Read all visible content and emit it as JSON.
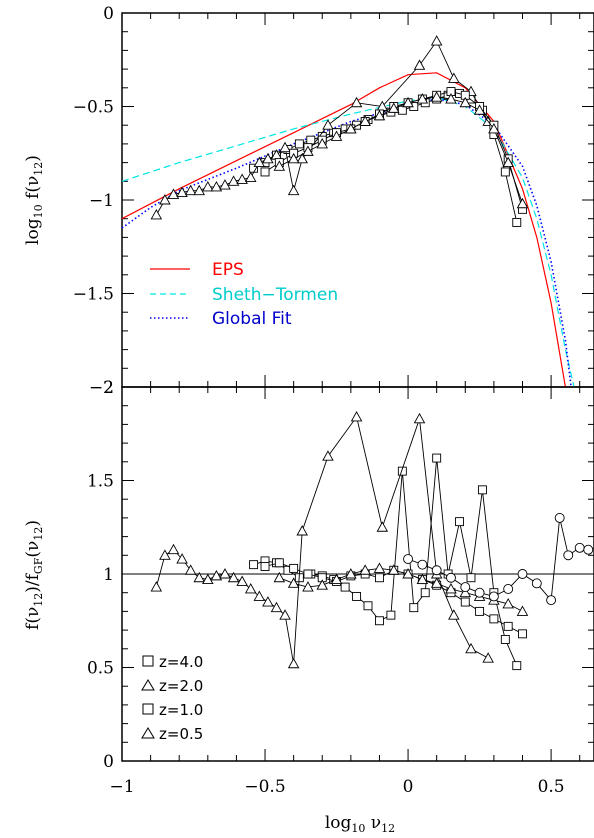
{
  "figure": {
    "top_panel": {
      "ylabel": "log10 f(ν12)",
      "ylim": [
        -2,
        0
      ],
      "yticks": [
        0,
        -0.5,
        -1,
        -1.5,
        -2
      ],
      "ytick_labels": [
        "0",
        "−0.5",
        "−1",
        "−1.5",
        "−2"
      ]
    },
    "bottom_panel": {
      "ylabel": "f(ν12)/fGF(ν12)",
      "ylim": [
        0,
        2
      ],
      "yticks": [
        0,
        0.5,
        1,
        1.5,
        2
      ],
      "ytick_labels": [
        "0",
        "0.5",
        "1",
        "1.5",
        "2"
      ]
    },
    "xlabel": "log10 ν12",
    "xlim": [
      -1,
      0.65
    ],
    "xticks": [
      -1,
      -0.5,
      0,
      0.5
    ],
    "xtick_labels": [
      "−1",
      "−0.5",
      "0",
      "0.5"
    ],
    "legend_curves": [
      {
        "label": "EPS",
        "color": "#ff0000",
        "style": "solid"
      },
      {
        "label": "Sheth−Tormen",
        "color": "#00e5e5",
        "style": "dashed"
      },
      {
        "label": "Global Fit",
        "color": "#0000ff",
        "style": "dotted"
      }
    ],
    "legend_symbols": [
      {
        "label": "z=4.0",
        "symbol": "square"
      },
      {
        "label": "z=2.0",
        "symbol": "triangle"
      },
      {
        "label": "z=1.0",
        "symbol": "square"
      },
      {
        "label": "z=0.5",
        "symbol": "triangle"
      }
    ]
  },
  "chart_data": [
    {
      "type": "line",
      "panel": "top",
      "xlabel": "log10 ν12",
      "ylabel": "log10 f(ν12)",
      "xlim": [
        -1,
        0.65
      ],
      "ylim": [
        -2,
        0
      ],
      "series": [
        {
          "name": "EPS",
          "color": "#ff0000",
          "style": "solid",
          "x": [
            -1,
            -0.8,
            -0.6,
            -0.4,
            -0.2,
            -0.1,
            0,
            0.1,
            0.2,
            0.3,
            0.4,
            0.45,
            0.5,
            0.55
          ],
          "y": [
            -1.1,
            -0.94,
            -0.79,
            -0.64,
            -0.49,
            -0.4,
            -0.33,
            -0.32,
            -0.4,
            -0.58,
            -0.94,
            -1.2,
            -1.55,
            -2.0
          ]
        },
        {
          "name": "Sheth−Tormen",
          "color": "#00e5e5",
          "style": "dashed",
          "x": [
            -1,
            -0.8,
            -0.6,
            -0.4,
            -0.2,
            0,
            0.1,
            0.2,
            0.3,
            0.4,
            0.45,
            0.5,
            0.55,
            0.58
          ],
          "y": [
            -0.9,
            -0.8,
            -0.71,
            -0.62,
            -0.54,
            -0.47,
            -0.45,
            -0.5,
            -0.62,
            -0.88,
            -1.1,
            -1.4,
            -1.8,
            -2.0
          ]
        },
        {
          "name": "Global Fit",
          "color": "#0000ff",
          "style": "dotted",
          "x": [
            -1,
            -0.9,
            -0.8,
            -0.6,
            -0.4,
            -0.2,
            0,
            0.1,
            0.2,
            0.3,
            0.4,
            0.45,
            0.5,
            0.55,
            0.57
          ],
          "y": [
            -1.15,
            -1.04,
            -0.95,
            -0.83,
            -0.7,
            -0.58,
            -0.49,
            -0.46,
            -0.49,
            -0.6,
            -0.82,
            -1.03,
            -1.33,
            -1.75,
            -2.0
          ]
        },
        {
          "name": "z=4.0",
          "symbol": "square",
          "x": [
            -0.54,
            -0.5,
            -0.46,
            -0.42,
            -0.38,
            -0.34,
            -0.3,
            -0.26,
            -0.22,
            -0.18,
            -0.14,
            -0.1,
            -0.06,
            -0.02,
            0.02,
            0.06,
            0.1,
            0.14,
            0.18,
            0.22,
            0.26,
            0.3,
            0.34,
            0.38
          ],
          "y": [
            -0.83,
            -0.8,
            -0.76,
            -0.73,
            -0.7,
            -0.68,
            -0.66,
            -0.64,
            -0.62,
            -0.6,
            -0.57,
            -0.55,
            -0.53,
            -0.52,
            -0.5,
            -0.48,
            -0.46,
            -0.44,
            -0.43,
            -0.46,
            -0.52,
            -0.65,
            -0.85,
            -1.12
          ]
        },
        {
          "name": "z=2.0",
          "symbol": "triangle",
          "x": [
            -0.88,
            -0.85,
            -0.82,
            -0.79,
            -0.76,
            -0.73,
            -0.7,
            -0.67,
            -0.64,
            -0.61,
            -0.58,
            -0.55,
            -0.52,
            -0.49,
            -0.46,
            -0.43,
            -0.4,
            -0.37,
            -0.28,
            -0.18,
            -0.09,
            0.04,
            0.1,
            0.16,
            0.22,
            0.28
          ],
          "y": [
            -1.08,
            -1.0,
            -0.97,
            -0.96,
            -0.95,
            -0.95,
            -0.93,
            -0.93,
            -0.92,
            -0.9,
            -0.89,
            -0.88,
            -0.8,
            -0.78,
            -0.76,
            -0.72,
            -0.95,
            -0.78,
            -0.6,
            -0.48,
            -0.5,
            -0.28,
            -0.15,
            -0.35,
            -0.42,
            -0.58
          ]
        },
        {
          "name": "z=1.0",
          "symbol": "square",
          "x": [
            -0.5,
            -0.45,
            -0.4,
            -0.35,
            -0.3,
            -0.25,
            -0.2,
            -0.15,
            -0.1,
            -0.05,
            0,
            0.05,
            0.1,
            0.15,
            0.2,
            0.25,
            0.3,
            0.35,
            0.4
          ],
          "y": [
            -0.85,
            -0.8,
            -0.75,
            -0.72,
            -0.68,
            -0.64,
            -0.62,
            -0.58,
            -0.54,
            -0.5,
            -0.48,
            -0.46,
            -0.44,
            -0.42,
            -0.44,
            -0.5,
            -0.6,
            -0.78,
            -1.05
          ]
        },
        {
          "name": "z=0.5",
          "symbol": "triangle",
          "x": [
            -0.45,
            -0.4,
            -0.35,
            -0.3,
            -0.25,
            -0.2,
            -0.15,
            -0.1,
            -0.05,
            0,
            0.05,
            0.1,
            0.15,
            0.2,
            0.25,
            0.3,
            0.35,
            0.4
          ],
          "y": [
            -0.82,
            -0.78,
            -0.74,
            -0.7,
            -0.66,
            -0.62,
            -0.58,
            -0.55,
            -0.51,
            -0.48,
            -0.46,
            -0.45,
            -0.46,
            -0.48,
            -0.52,
            -0.62,
            -0.8,
            -1.02
          ]
        }
      ]
    },
    {
      "type": "line",
      "panel": "bottom",
      "xlabel": "log10 ν12",
      "ylabel": "f(ν12)/fGF(ν12)",
      "xlim": [
        -1,
        0.65
      ],
      "ylim": [
        0,
        2
      ],
      "reference_line": 1,
      "series": [
        {
          "name": "z=4.0",
          "symbol": "square",
          "x": [
            -0.54,
            -0.5,
            -0.46,
            -0.42,
            -0.38,
            -0.34,
            -0.3,
            -0.26,
            -0.22,
            -0.18,
            -0.14,
            -0.1,
            -0.06,
            -0.02,
            0.02,
            0.06,
            0.1,
            0.14,
            0.18,
            0.22,
            0.26,
            0.3,
            0.34,
            0.38
          ],
          "y": [
            1.05,
            1.07,
            1.06,
            1.02,
            0.98,
            1.0,
            0.99,
            0.97,
            0.93,
            0.88,
            0.83,
            0.75,
            0.78,
            1.55,
            0.82,
            0.9,
            1.62,
            1.0,
            1.28,
            0.98,
            1.45,
            0.9,
            0.65,
            0.51
          ]
        },
        {
          "name": "z=2.0",
          "symbol": "triangle",
          "x": [
            -0.88,
            -0.85,
            -0.82,
            -0.79,
            -0.76,
            -0.73,
            -0.7,
            -0.67,
            -0.64,
            -0.61,
            -0.58,
            -0.55,
            -0.52,
            -0.49,
            -0.46,
            -0.43,
            -0.4,
            -0.37,
            -0.28,
            -0.18,
            -0.09,
            0.04,
            0.1,
            0.16,
            0.22,
            0.28
          ],
          "y": [
            0.93,
            1.1,
            1.13,
            1.08,
            1.02,
            0.98,
            0.97,
            0.99,
            1.0,
            0.98,
            0.96,
            0.92,
            0.88,
            0.85,
            0.82,
            0.78,
            0.52,
            1.23,
            1.63,
            1.84,
            1.25,
            1.83,
            1.0,
            0.78,
            0.6,
            0.55
          ]
        },
        {
          "name": "z=1.0",
          "symbol": "square",
          "x": [
            -0.5,
            -0.45,
            -0.4,
            -0.35,
            -0.3,
            -0.25,
            -0.2,
            -0.15,
            -0.1,
            -0.05,
            0,
            0.05,
            0.1,
            0.15,
            0.2,
            0.25,
            0.3,
            0.35,
            0.4
          ],
          "y": [
            1.04,
            1.06,
            1.03,
            1.0,
            0.98,
            0.96,
            0.99,
            1.0,
            0.98,
            1.02,
            1.0,
            0.97,
            0.94,
            0.9,
            0.85,
            0.8,
            0.76,
            0.72,
            0.68
          ]
        },
        {
          "name": "z=0.5",
          "symbol": "triangle",
          "x": [
            -0.45,
            -0.4,
            -0.35,
            -0.3,
            -0.25,
            -0.2,
            -0.15,
            -0.1,
            -0.05,
            0,
            0.05,
            0.1,
            0.15,
            0.2,
            0.25,
            0.3,
            0.35,
            0.4
          ],
          "y": [
            0.98,
            0.95,
            0.93,
            0.94,
            0.97,
            1.0,
            1.02,
            1.03,
            1.02,
            1.0,
            0.97,
            0.95,
            0.92,
            0.9,
            0.88,
            0.86,
            0.84,
            0.8
          ]
        },
        {
          "name": "high-ν (circles/pentagons)",
          "symbol": "circle",
          "x": [
            0.0,
            0.05,
            0.1,
            0.15,
            0.2,
            0.25,
            0.3,
            0.35,
            0.4,
            0.45,
            0.5,
            0.53,
            0.56,
            0.6,
            0.63
          ],
          "y": [
            1.08,
            1.05,
            1.02,
            0.98,
            0.93,
            0.9,
            0.88,
            0.92,
            1.0,
            0.95,
            0.86,
            1.3,
            1.1,
            1.14,
            1.13
          ]
        }
      ]
    }
  ]
}
